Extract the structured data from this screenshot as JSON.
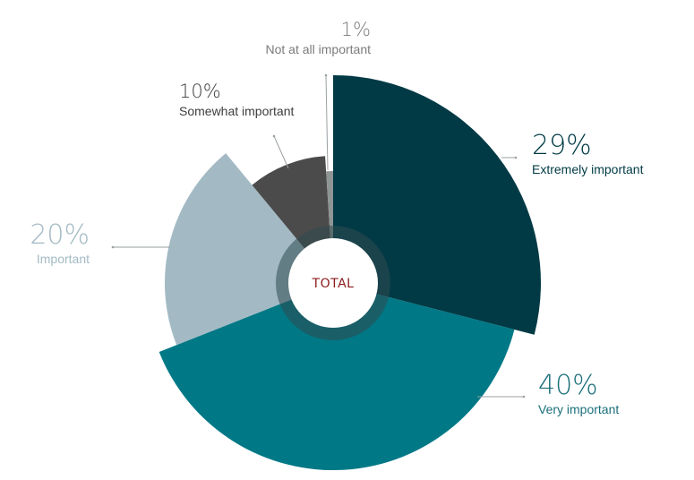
{
  "chart_data": {
    "type": "pie",
    "center_label": "TOTAL",
    "slices": [
      {
        "label": "Extremely important",
        "value": 29,
        "value_label": "29%",
        "color": "#013a45",
        "text_color": "#013a45"
      },
      {
        "label": "Very important",
        "value": 40,
        "value_label": "40%",
        "color": "#007886",
        "text_color": "#1b6f7a"
      },
      {
        "label": "Important",
        "value": 20,
        "value_label": "20%",
        "color": "#a3bac4",
        "text_color": "#a3bac4"
      },
      {
        "label": "Somewhat important",
        "value": 10,
        "value_label": "10%",
        "color": "#4b4b4b",
        "text_color": "#3d3d3d"
      },
      {
        "label": "Not at all important",
        "value": 1,
        "value_label": "1%",
        "color": "#8f9494",
        "text_color": "#7b7b7b"
      }
    ],
    "colors": {
      "center_text": "#8a1a1a",
      "inner_ring": "#2f4a50",
      "leader": "#9aa0a3"
    }
  }
}
